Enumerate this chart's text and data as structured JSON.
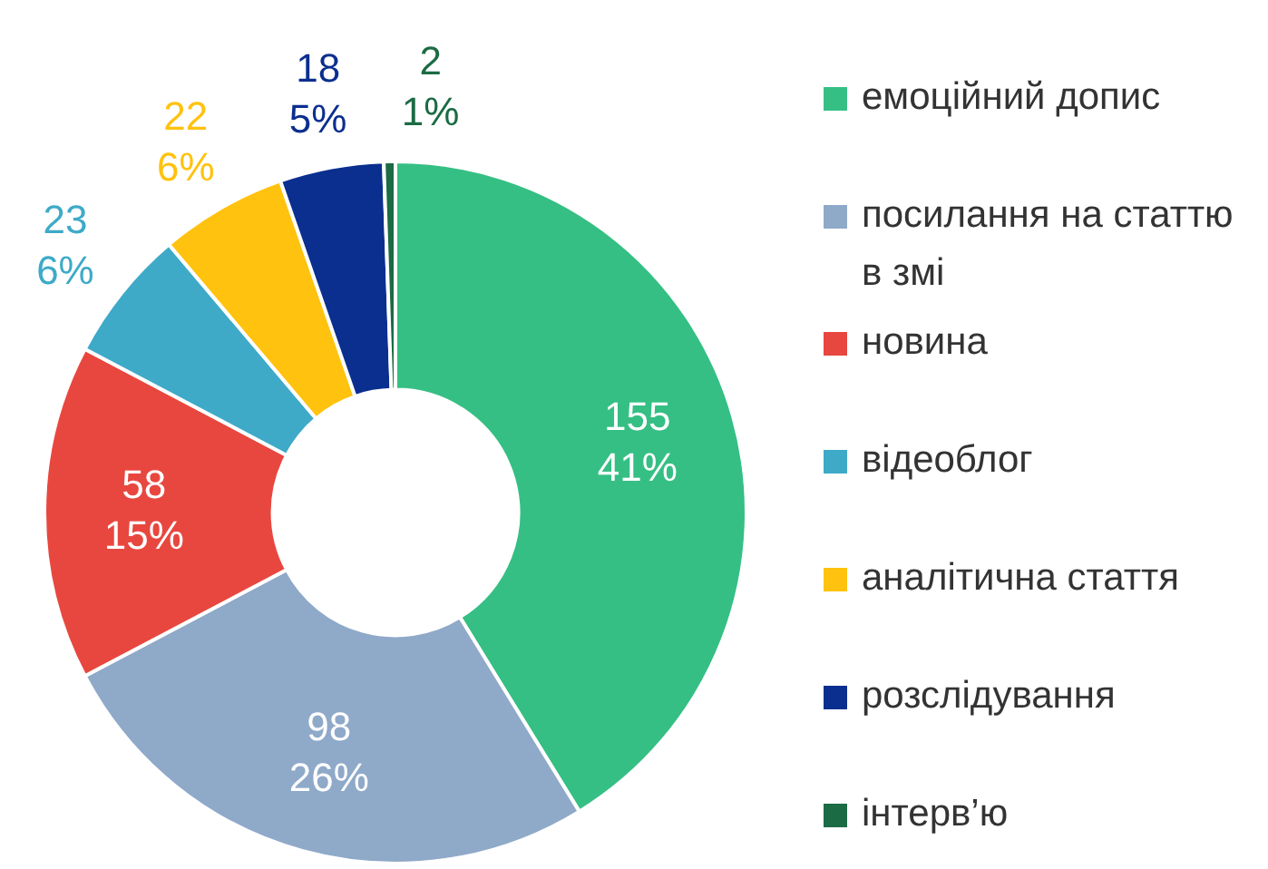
{
  "chart_data": {
    "type": "donut",
    "categories": [
      "емоційний допис",
      "посилання на статтю в змі",
      "новина",
      "відеоблог",
      "аналітична стаття",
      "розслідування",
      "інтерв’ю"
    ],
    "values": [
      155,
      98,
      58,
      23,
      22,
      18,
      2
    ],
    "value_labels": [
      "155\n41%",
      "98\n26%",
      "58\n15%",
      "23\n6%",
      "22\n6%",
      "18\n5%",
      "2\n1%"
    ],
    "colors": [
      "#35bf84",
      "#8fa9c9",
      "#e8473f",
      "#3eaac8",
      "#ffc20e",
      "#0b2f8f",
      "#1b6b44"
    ],
    "legend": "right"
  }
}
